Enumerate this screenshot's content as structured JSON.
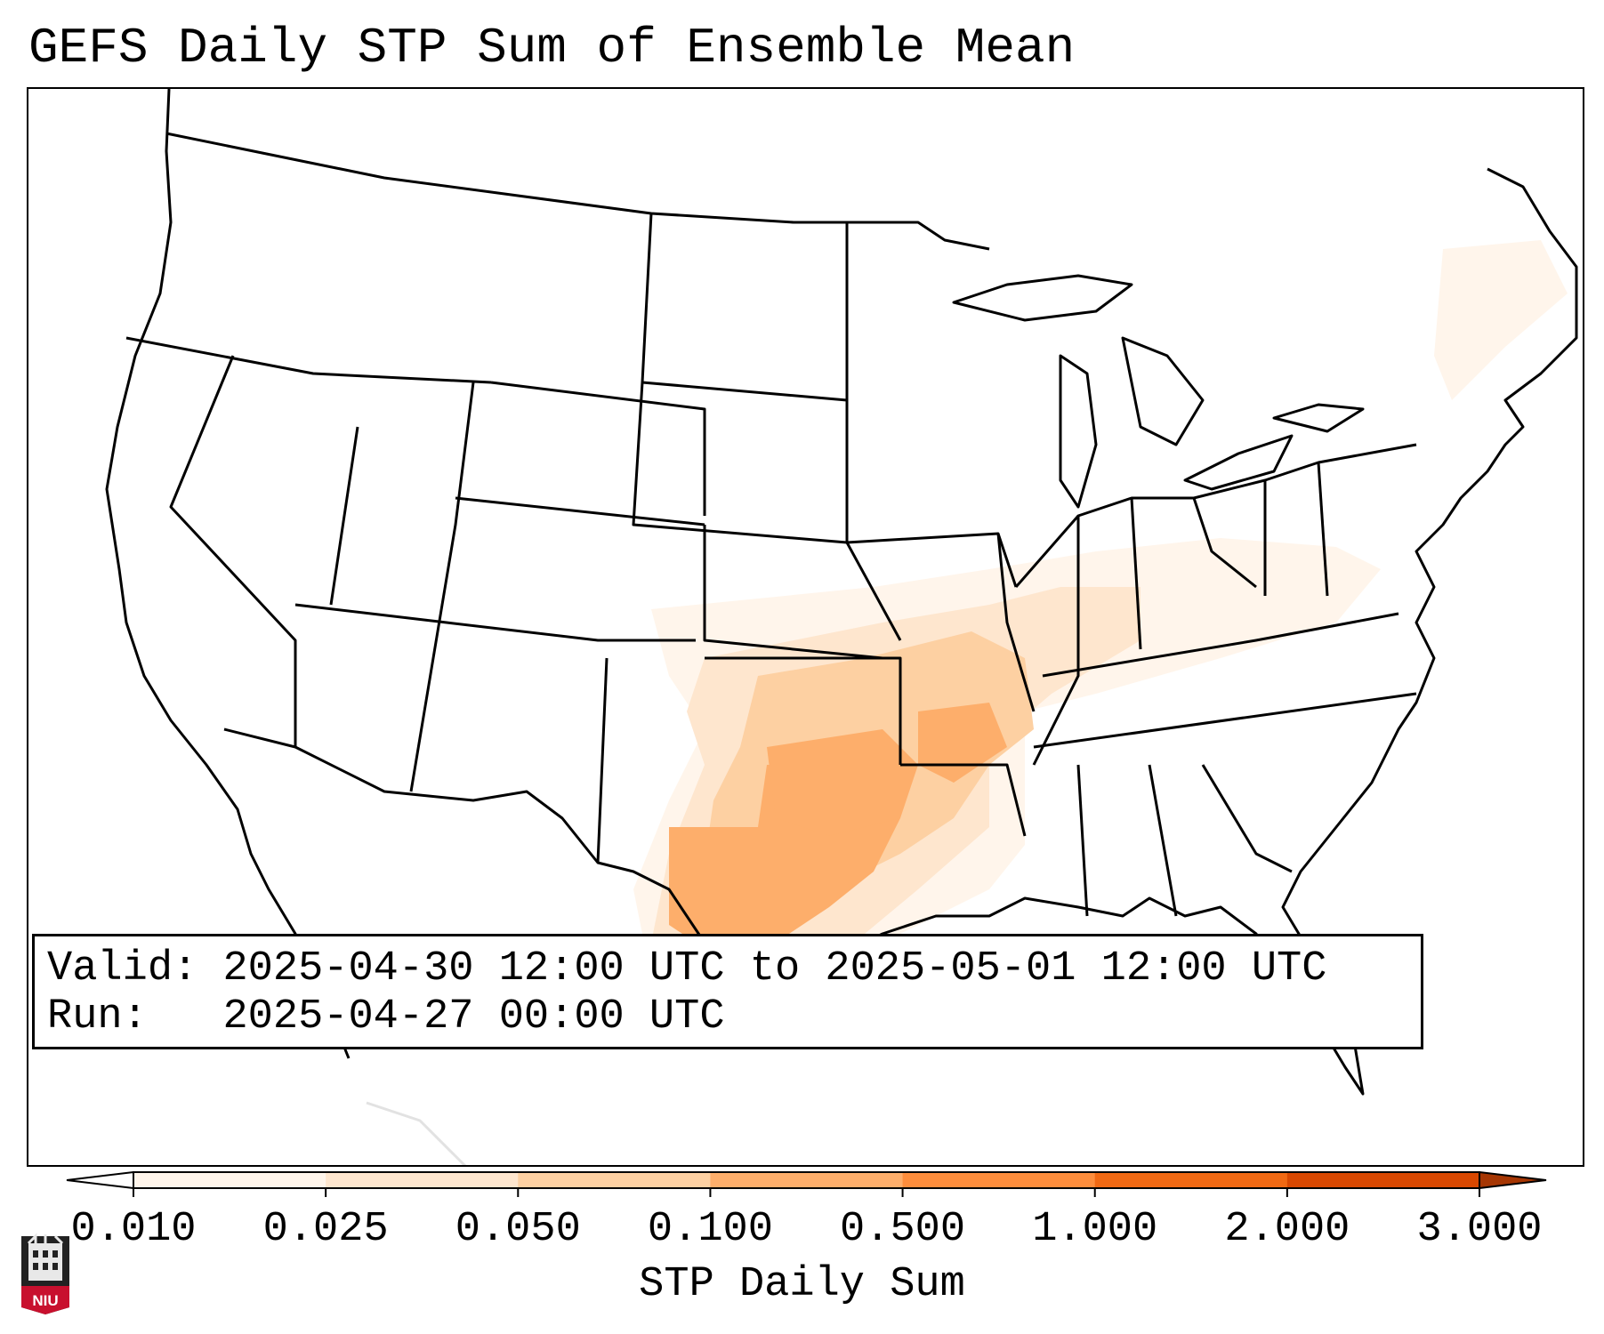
{
  "title": "GEFS Daily STP Sum of Ensemble Mean",
  "info": {
    "valid_label": "Valid:",
    "valid_value": "2025-04-30 12:00 UTC to 2025-05-01 12:00 UTC",
    "run_label": "Run:",
    "run_value": "2025-04-27 00:00 UTC"
  },
  "colorbar": {
    "label": "STP Daily Sum",
    "ticks": [
      "0.010",
      "0.025",
      "0.050",
      "0.100",
      "0.500",
      "1.000",
      "2.000",
      "3.000"
    ],
    "colors": [
      "#fff5eb",
      "#fee6ce",
      "#fdd0a2",
      "#fdae6b",
      "#fd8d3c",
      "#f16913",
      "#d94801"
    ],
    "over_color": "#a63603",
    "under_color": "#ffffff"
  },
  "map": {
    "region": "Contiguous United States",
    "max_field_region": "Southern Plains (Oklahoma / North Texas)"
  },
  "logo": {
    "text": "NIU",
    "color": "#c8102e"
  }
}
